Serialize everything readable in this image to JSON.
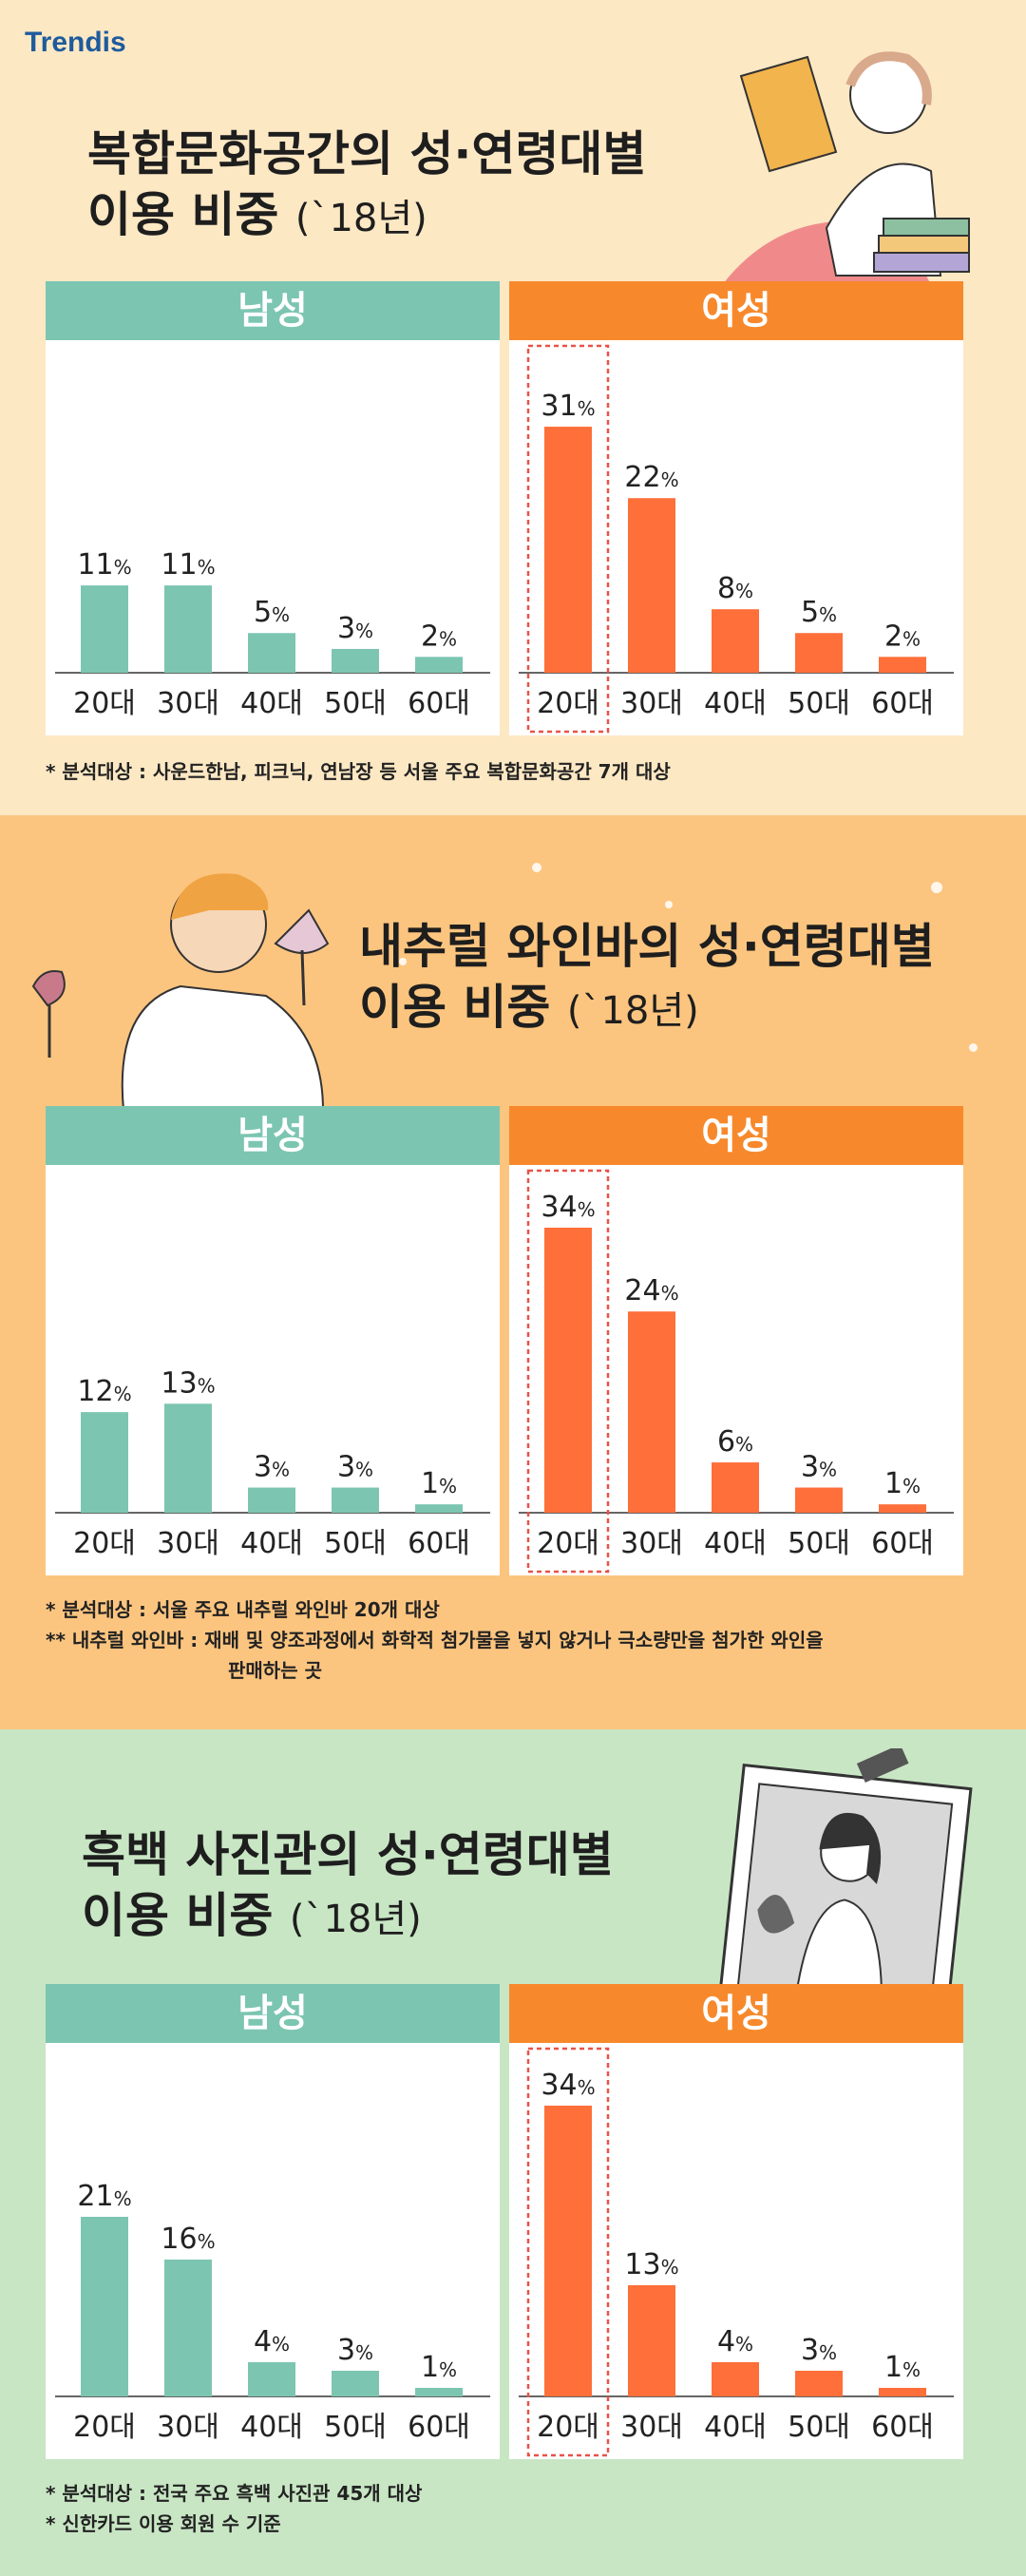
{
  "brand": {
    "logo_text": "Trendis"
  },
  "colors": {
    "male": "#7cc5b1",
    "female": "#fe6f3a",
    "female_header": "#f7892c"
  },
  "sections": [
    {
      "title_line1": "복합문화공간의 성·연령대별",
      "title_line2": "이용 비중",
      "title_year": "(`18년)",
      "male_label": "남성",
      "female_label": "여성",
      "notes": [
        "* 분석대상 : 사운드한남, 피크닉, 연남장 등 서울 주요 복합문화공간 7개 대상"
      ]
    },
    {
      "title_line1": "내추럴 와인바의 성·연령대별",
      "title_line2": "이용 비중",
      "title_year": "(`18년)",
      "male_label": "남성",
      "female_label": "여성",
      "notes": [
        "* 분석대상 : 서울 주요 내추럴 와인바 20개 대상",
        "** 내추럴 와인바 : 재배 및 양조과정에서 화학적 첨가물을 넣지 않거나 극소량만을 첨가한 와인을",
        "판매하는 곳"
      ]
    },
    {
      "title_line1": "흑백 사진관의 성·연령대별",
      "title_line2": "이용 비중",
      "title_year": "(`18년)",
      "male_label": "남성",
      "female_label": "여성",
      "notes": [
        "* 분석대상 : 전국 주요 흑백 사진관 45개 대상",
        "* 신한카드 이용 회원 수 기준"
      ]
    }
  ],
  "chart_data": [
    {
      "type": "bar",
      "title": "복합문화공간의 성·연령대별 이용 비중 (`18년)",
      "categories": [
        "20대",
        "30대",
        "40대",
        "50대",
        "60대"
      ],
      "series": [
        {
          "name": "남성",
          "values": [
            11,
            11,
            5,
            3,
            2
          ]
        },
        {
          "name": "여성",
          "values": [
            31,
            22,
            8,
            5,
            2
          ]
        }
      ],
      "unit": "%",
      "highlight": "20대"
    },
    {
      "type": "bar",
      "title": "내추럴 와인바의 성·연령대별 이용 비중 (`18년)",
      "categories": [
        "20대",
        "30대",
        "40대",
        "50대",
        "60대"
      ],
      "series": [
        {
          "name": "남성",
          "values": [
            12,
            13,
            3,
            3,
            1
          ]
        },
        {
          "name": "여성",
          "values": [
            34,
            24,
            6,
            3,
            1
          ]
        }
      ],
      "unit": "%",
      "highlight": "20대"
    },
    {
      "type": "bar",
      "title": "흑백 사진관의 성·연령대별 이용 비중 (`18년)",
      "categories": [
        "20대",
        "30대",
        "40대",
        "50대",
        "60대"
      ],
      "series": [
        {
          "name": "남성",
          "values": [
            21,
            16,
            4,
            3,
            1
          ]
        },
        {
          "name": "여성",
          "values": [
            34,
            13,
            4,
            3,
            1
          ]
        }
      ],
      "unit": "%",
      "highlight": "20대"
    }
  ]
}
